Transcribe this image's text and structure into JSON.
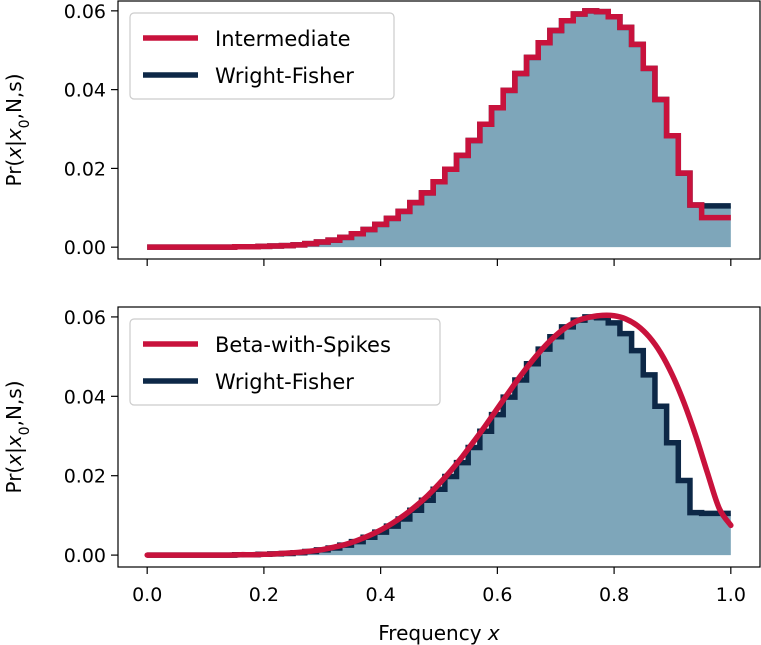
{
  "chart_data": [
    {
      "type": "area",
      "panel": "top",
      "xlabel": "",
      "ylabel": "Pr(x|x0,N,s)",
      "ylim": [
        -0.003,
        0.0625
      ],
      "xlim": [
        -0.05,
        1.05
      ],
      "yticks": [
        "0.00",
        "0.02",
        "0.04",
        "0.06"
      ],
      "ytick_values": [
        0.0,
        0.02,
        0.04,
        0.06
      ],
      "xticks": [
        0.0,
        0.2,
        0.4,
        0.6,
        0.8,
        1.0
      ],
      "show_xtick_labels": false,
      "grid": false,
      "legend_position": "top-left",
      "legend": [
        "Intermediate",
        "Wright-Fisher"
      ],
      "x": [
        0.0,
        0.02,
        0.04,
        0.06,
        0.08,
        0.1,
        0.12,
        0.14,
        0.16,
        0.18,
        0.2,
        0.22,
        0.24,
        0.26,
        0.28,
        0.3,
        0.32,
        0.34,
        0.36,
        0.38,
        0.4,
        0.42,
        0.44,
        0.46,
        0.48,
        0.5,
        0.52,
        0.54,
        0.56,
        0.58,
        0.6,
        0.62,
        0.64,
        0.66,
        0.68,
        0.7,
        0.72,
        0.74,
        0.76,
        0.78,
        0.8,
        0.82,
        0.84,
        0.86,
        0.88,
        0.9,
        0.92,
        0.94,
        0.96,
        0.98,
        1.0
      ],
      "series": [
        {
          "name": "Wright-Fisher",
          "style": "step-filled",
          "color": "#0d2847",
          "fill": "#7ea6ba",
          "values": [
            0.0,
            0.0,
            0.0,
            0.0,
            0.0,
            0.0,
            0.0,
            0.0,
            0.0001,
            0.0001,
            0.0002,
            0.0003,
            0.0004,
            0.0006,
            0.0009,
            0.0013,
            0.0018,
            0.0025,
            0.0034,
            0.0045,
            0.0058,
            0.0073,
            0.0091,
            0.0113,
            0.0138,
            0.0166,
            0.0198,
            0.0233,
            0.0271,
            0.0312,
            0.0354,
            0.0398,
            0.0441,
            0.0482,
            0.0519,
            0.055,
            0.0575,
            0.0592,
            0.06,
            0.0598,
            0.0585,
            0.0558,
            0.0515,
            0.0454,
            0.0375,
            0.0283,
            0.0188,
            0.0107,
            0.0105,
            0.0105,
            0.0105
          ]
        },
        {
          "name": "Intermediate",
          "style": "step",
          "color": "#c8123c",
          "values": [
            0.0,
            0.0,
            0.0,
            0.0,
            0.0,
            0.0,
            0.0,
            0.0,
            0.0001,
            0.0001,
            0.0002,
            0.0003,
            0.0004,
            0.0006,
            0.0009,
            0.0013,
            0.0018,
            0.0025,
            0.0034,
            0.0045,
            0.0058,
            0.0073,
            0.0091,
            0.0113,
            0.0138,
            0.0166,
            0.0198,
            0.0233,
            0.0271,
            0.0312,
            0.0354,
            0.0398,
            0.0441,
            0.0482,
            0.0519,
            0.055,
            0.0575,
            0.0592,
            0.06,
            0.0598,
            0.0585,
            0.0558,
            0.0515,
            0.0454,
            0.0375,
            0.0283,
            0.0188,
            0.0107,
            0.0075,
            0.0075,
            0.0075
          ]
        }
      ]
    },
    {
      "type": "area",
      "panel": "bottom",
      "xlabel": "Frequency x",
      "ylabel": "Pr(x|x0,N,s)",
      "ylim": [
        -0.003,
        0.0625
      ],
      "xlim": [
        -0.05,
        1.05
      ],
      "yticks": [
        "0.00",
        "0.02",
        "0.04",
        "0.06"
      ],
      "ytick_values": [
        0.0,
        0.02,
        0.04,
        0.06
      ],
      "xticks": [
        "0.0",
        "0.2",
        "0.4",
        "0.6",
        "0.8",
        "1.0"
      ],
      "xtick_values": [
        0.0,
        0.2,
        0.4,
        0.6,
        0.8,
        1.0
      ],
      "show_xtick_labels": true,
      "grid": false,
      "legend_position": "top-left",
      "legend": [
        "Beta-with-Spikes",
        "Wright-Fisher"
      ],
      "x": [
        0.0,
        0.02,
        0.04,
        0.06,
        0.08,
        0.1,
        0.12,
        0.14,
        0.16,
        0.18,
        0.2,
        0.22,
        0.24,
        0.26,
        0.28,
        0.3,
        0.32,
        0.34,
        0.36,
        0.38,
        0.4,
        0.42,
        0.44,
        0.46,
        0.48,
        0.5,
        0.52,
        0.54,
        0.56,
        0.58,
        0.6,
        0.62,
        0.64,
        0.66,
        0.68,
        0.7,
        0.72,
        0.74,
        0.76,
        0.78,
        0.8,
        0.82,
        0.84,
        0.86,
        0.88,
        0.9,
        0.92,
        0.94,
        0.96,
        0.98,
        1.0
      ],
      "series": [
        {
          "name": "Wright-Fisher",
          "style": "step-filled",
          "color": "#0d2847",
          "fill": "#7ea6ba",
          "values": [
            0.0,
            0.0,
            0.0,
            0.0,
            0.0,
            0.0,
            0.0,
            0.0,
            0.0001,
            0.0001,
            0.0002,
            0.0003,
            0.0004,
            0.0006,
            0.0009,
            0.0013,
            0.0018,
            0.0025,
            0.0034,
            0.0045,
            0.0058,
            0.0073,
            0.0091,
            0.0113,
            0.0138,
            0.0166,
            0.0198,
            0.0233,
            0.0271,
            0.0312,
            0.0354,
            0.0398,
            0.0441,
            0.0482,
            0.0519,
            0.055,
            0.0575,
            0.0592,
            0.06,
            0.0598,
            0.0585,
            0.0558,
            0.0515,
            0.0454,
            0.0375,
            0.0283,
            0.0188,
            0.0107,
            0.0105,
            0.0105,
            0.0105
          ]
        },
        {
          "name": "Beta-with-Spikes",
          "style": "smooth",
          "color": "#c8123c",
          "values": [
            0.0,
            0.0,
            0.0,
            0.0,
            0.0,
            0.0,
            0.0,
            0.0,
            0.0001,
            0.0001,
            0.0002,
            0.0003,
            0.0005,
            0.0007,
            0.001,
            0.0014,
            0.002,
            0.0027,
            0.0037,
            0.0049,
            0.0063,
            0.008,
            0.01,
            0.0123,
            0.0149,
            0.0179,
            0.0212,
            0.0248,
            0.0287,
            0.0327,
            0.0369,
            0.0411,
            0.0452,
            0.049,
            0.0524,
            0.0553,
            0.0576,
            0.0592,
            0.06,
            0.0604,
            0.0603,
            0.0595,
            0.0578,
            0.055,
            0.0509,
            0.0453,
            0.0383,
            0.03,
            0.0207,
            0.0118,
            0.0075
          ]
        }
      ]
    }
  ]
}
